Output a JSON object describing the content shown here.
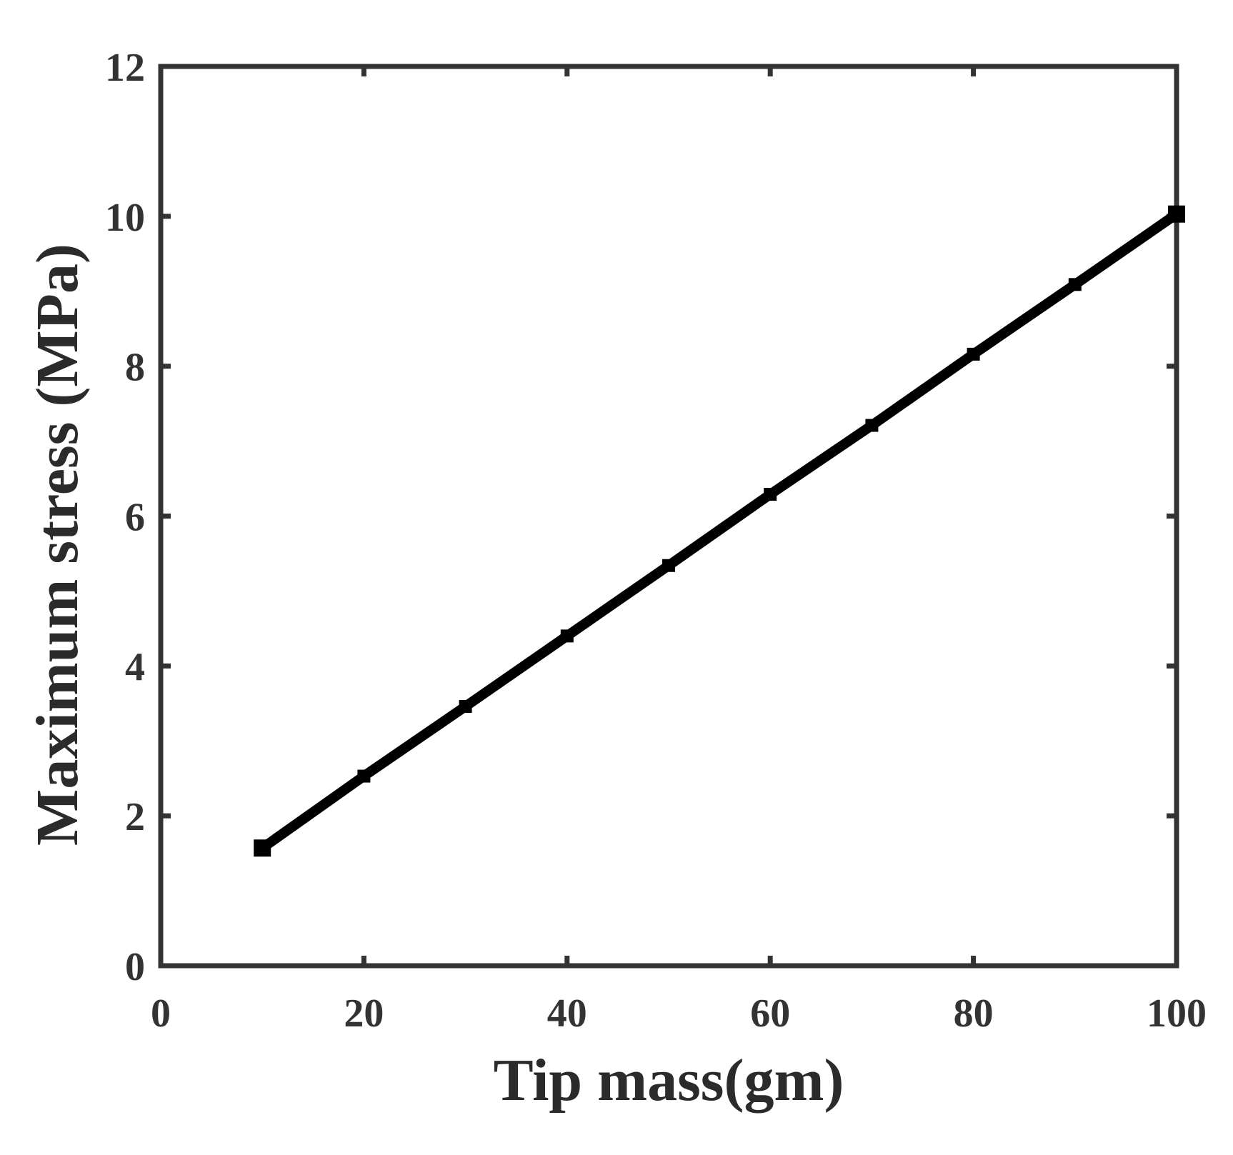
{
  "chart_data": {
    "type": "line",
    "title": "",
    "xlabel": "Tip mass(gm)",
    "ylabel": "Maximum stress (MPa)",
    "xlim": [
      0,
      100
    ],
    "ylim": [
      0,
      12
    ],
    "xticks": [
      0,
      20,
      40,
      60,
      80,
      100
    ],
    "yticks": [
      0,
      2,
      4,
      6,
      8,
      10,
      12
    ],
    "xtick_labels": [
      "0",
      "20",
      "40",
      "60",
      "80",
      "100"
    ],
    "ytick_labels": [
      "0",
      "2",
      "4",
      "6",
      "8",
      "10",
      "12"
    ],
    "grid": false,
    "legend": "none",
    "series": [
      {
        "color": "#000000",
        "marker": "square",
        "x": [
          10,
          20,
          30,
          40,
          50,
          60,
          70,
          80,
          90,
          100
        ],
        "y": [
          1.57,
          2.53,
          3.46,
          4.4,
          5.34,
          6.29,
          7.21,
          8.16,
          9.09,
          10.03
        ]
      }
    ],
    "colors": {
      "axes": "#333333",
      "line": "#000000",
      "background": "#ffffff"
    }
  }
}
